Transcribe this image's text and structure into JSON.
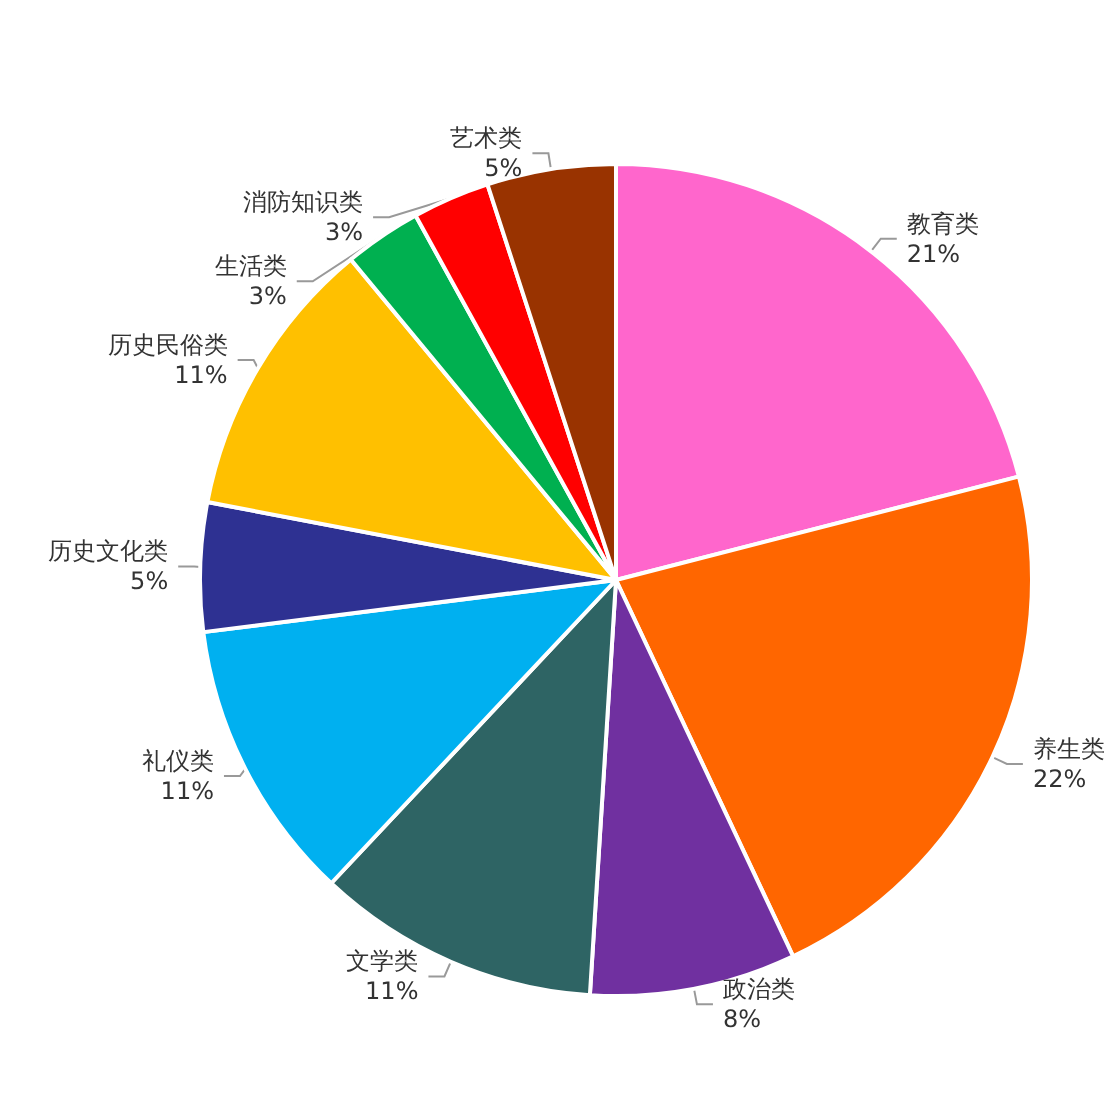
{
  "chart_data": {
    "type": "pie",
    "categories": [
      "教育类",
      "养生类",
      "政治类",
      "文学类",
      "礼仪类",
      "历史文化类",
      "历史民俗类",
      "生活类",
      "消防知识类",
      "艺术类"
    ],
    "values": [
      21,
      22,
      8,
      11,
      11,
      5,
      11,
      3,
      3,
      5
    ],
    "value_labels": [
      "21%",
      "22%",
      "8%",
      "11%",
      "11%",
      "5%",
      "11%",
      "3%",
      "3%",
      "5%"
    ],
    "colors": [
      "#ff66cc",
      "#ff6600",
      "#7030a0",
      "#2e6464",
      "#00b0f0",
      "#2e3192",
      "#ffc000",
      "#00b050",
      "#ff0000",
      "#993300"
    ],
    "legend": false
  }
}
